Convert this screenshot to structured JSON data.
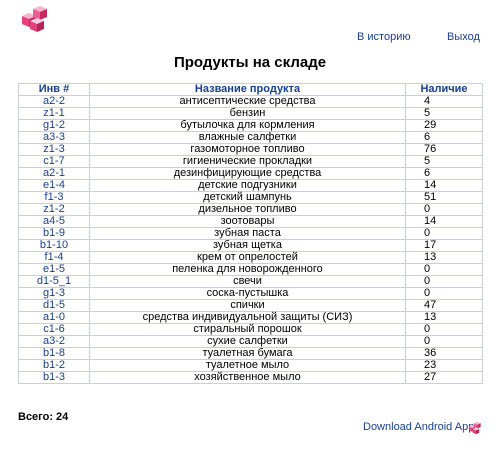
{
  "nav": {
    "history": "В историю",
    "logout": "Выход"
  },
  "title": "Продукты на складе",
  "table": {
    "headers": [
      "Инв #",
      "Название продукта",
      "Наличие"
    ],
    "rows": [
      {
        "inv": "a2-2",
        "name": "антисептические средства",
        "qty": "4"
      },
      {
        "inv": "z1-1",
        "name": "бензин",
        "qty": "5"
      },
      {
        "inv": "g1-2",
        "name": "бутылочка для кормления",
        "qty": "29"
      },
      {
        "inv": "a3-3",
        "name": "влажные салфетки",
        "qty": "6"
      },
      {
        "inv": "z1-3",
        "name": "газомоторное топливо",
        "qty": "76"
      },
      {
        "inv": "c1-7",
        "name": "гигиенические прокладки",
        "qty": "5"
      },
      {
        "inv": "a2-1",
        "name": "дезинфицирующие средства",
        "qty": "6"
      },
      {
        "inv": "e1-4",
        "name": "детские подгузники",
        "qty": "14"
      },
      {
        "inv": "f1-3",
        "name": "детский шампунь",
        "qty": "51"
      },
      {
        "inv": "z1-2",
        "name": "дизельное топливо",
        "qty": "0"
      },
      {
        "inv": "a4-5",
        "name": "зоотовары",
        "qty": "14"
      },
      {
        "inv": "b1-9",
        "name": "зубная паста",
        "qty": "0"
      },
      {
        "inv": "b1-10",
        "name": "зубная щетка",
        "qty": "17"
      },
      {
        "inv": "f1-4",
        "name": "крем от опрелостей",
        "qty": "13"
      },
      {
        "inv": "e1-5",
        "name": "пеленка для новорожденного",
        "qty": "0"
      },
      {
        "inv": "d1-5_1",
        "name": "свечи",
        "qty": "0"
      },
      {
        "inv": "g1-3",
        "name": "соска-пустышка",
        "qty": "0"
      },
      {
        "inv": "d1-5",
        "name": "спички",
        "qty": "47"
      },
      {
        "inv": "a1-0",
        "name": "средства индивидуальной защиты (СИЗ)",
        "qty": "13"
      },
      {
        "inv": "c1-6",
        "name": "стиральный порошок",
        "qty": "0"
      },
      {
        "inv": "a3-2",
        "name": "сухие салфетки",
        "qty": "0"
      },
      {
        "inv": "b1-8",
        "name": "туалетная бумага",
        "qty": "36"
      },
      {
        "inv": "b1-2",
        "name": "туалетное мыло",
        "qty": "23"
      },
      {
        "inv": "b1-3",
        "name": "хозяйственное мыло",
        "qty": "27"
      }
    ]
  },
  "total": "Всего: 24",
  "footer": {
    "android_app": "Download Android App"
  },
  "icons": {
    "logo": "cubes-logo-icon",
    "android": "cubes-app-icon"
  },
  "colors": {
    "link": "#1a3f8f",
    "cube_pink": "#e8407a",
    "cube_light": "#f5a6c6"
  }
}
